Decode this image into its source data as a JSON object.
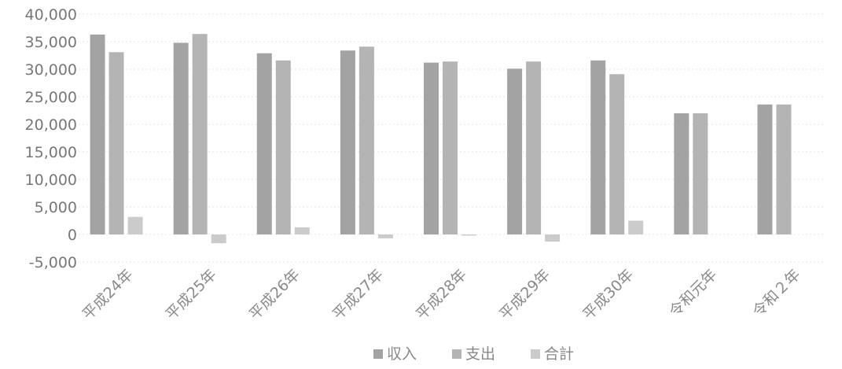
{
  "chart_data": {
    "type": "bar",
    "categories": [
      "平成24年",
      "平成25年",
      "平成26年",
      "平成27年",
      "平成28年",
      "平成29年",
      "平成30年",
      "令和元年",
      "令和２年"
    ],
    "series": [
      {
        "name": "収入",
        "color": "#a3a3a3",
        "values": [
          36300,
          34800,
          32900,
          33400,
          31200,
          30100,
          31600,
          22000,
          23600
        ]
      },
      {
        "name": "支出",
        "color": "#b4b4b4",
        "values": [
          33100,
          36400,
          31600,
          34100,
          31400,
          31400,
          29100,
          22000,
          23600
        ]
      },
      {
        "name": "合計",
        "color": "#cbcbcb",
        "values": [
          3200,
          -1600,
          1300,
          -700,
          -200,
          -1300,
          2500,
          0,
          0
        ]
      }
    ],
    "yticks": [
      "40,000",
      "35,000",
      "30,000",
      "25,000",
      "20,000",
      "15,000",
      "10,000",
      "5,000",
      "0",
      "-5,000"
    ],
    "ylim": [
      -5000,
      40000
    ],
    "grid": true,
    "legend": "bottom"
  }
}
